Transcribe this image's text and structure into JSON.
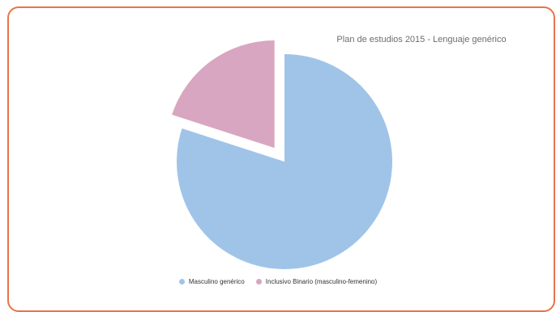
{
  "chart_data": {
    "type": "pie",
    "title": "Plan de estudios 2015 - Lenguaje genérico",
    "legend_position": "bottom",
    "series": [
      {
        "name": "Masculino genérico",
        "value": 80,
        "color": "#a0c4e8",
        "exploded": false
      },
      {
        "name": "Inclusivo Binario (masculino-femenino)",
        "value": 20,
        "color": "#d8a6c0",
        "exploded": true
      }
    ]
  }
}
